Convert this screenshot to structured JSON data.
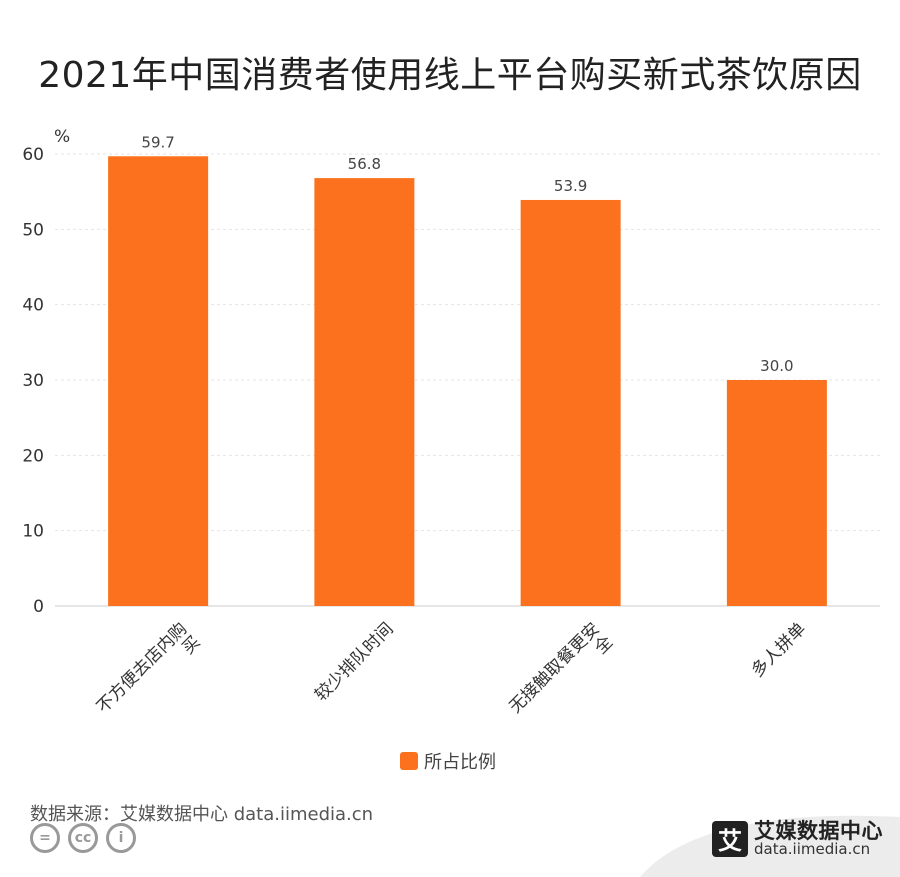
{
  "chart_data": {
    "type": "bar",
    "title": "2021年中国消费者使用线上平台购买新式茶饮原因",
    "ylabel": "%",
    "xlabel": "",
    "categories": [
      "不方便去店内购买",
      "较少排队时间",
      "无接触取餐更安全",
      "多人拼单"
    ],
    "series": [
      {
        "name": "所占比例",
        "values": [
          59.7,
          56.8,
          53.9,
          30.0
        ]
      }
    ],
    "ylim": [
      0,
      60
    ],
    "yticks": [
      0,
      10,
      20,
      30,
      40,
      50,
      60
    ],
    "legend": "bottom-center",
    "grid": true,
    "value_labels": [
      "59.7",
      "56.8",
      "53.9",
      "30.0"
    ]
  },
  "colors": {
    "bar": "#fc711d",
    "grid": "#e5e5e5",
    "axis": "#cccccc"
  },
  "source": "数据来源：艾媒数据中心 data.iimedia.cn",
  "brand": {
    "logo_char": "艾",
    "name": "艾媒数据中心",
    "url": "data.iimedia.cn"
  },
  "license_icons": [
    "equals-icon",
    "cc-icon",
    "person-icon"
  ],
  "license_glyphs": [
    "=",
    "cc",
    "i"
  ]
}
